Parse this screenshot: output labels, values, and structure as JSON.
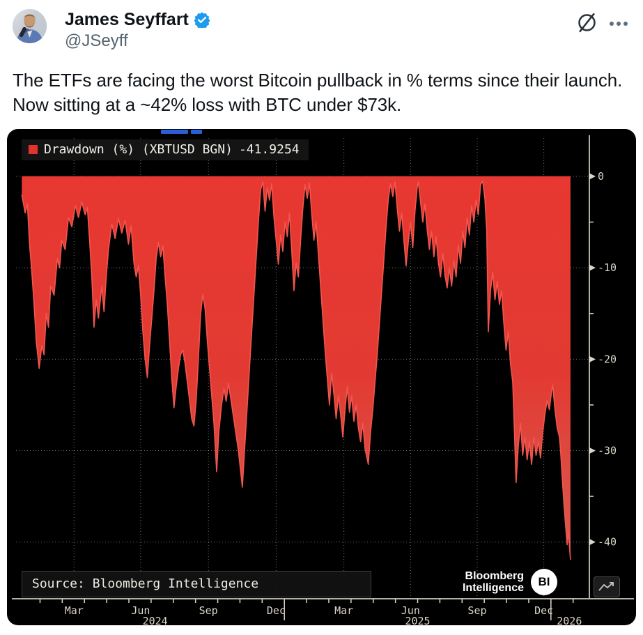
{
  "tweet": {
    "author_name": "James Seyffart",
    "author_handle": "@JSeyff",
    "verified": true,
    "body": "The ETFs are facing the worst Bitcoin pullback in % terms since their launch. Now sitting at a ~42% loss with BTC under $73k."
  },
  "header_icons": {
    "grok_icon": "slashed-circle",
    "more_icon": "ellipsis"
  },
  "colors": {
    "verified_blue": "#1d9bf0",
    "muted_gray": "#536471",
    "chart_bg": "#000000",
    "area_red_top": "#e73831",
    "area_red_bottom": "#d95c50",
    "line_red": "#f2564e",
    "axis_gray": "#b5b0a6",
    "tick_text": "#ddd6ca",
    "grid_white": "rgba(235,235,235,0.5)",
    "blue_dash": "#2b5ed6"
  },
  "chart_data": {
    "type": "area",
    "legend": {
      "label": "Drawdown (%) (XBTUSD BGN)",
      "value": "-41.9254",
      "swatch_color": "#e0332e"
    },
    "source": "Source: Bloomberg Intelligence",
    "brand": {
      "line1": "Bloomberg",
      "line2": "Intelligence",
      "badge": "BI"
    },
    "ylabel": "Drawdown (%)",
    "y_axis": {
      "side": "right",
      "unit": "%",
      "major_ticks": [
        0,
        -10,
        -20,
        -30,
        -40
      ],
      "minor_ticks": [
        -5,
        -15,
        -25,
        -35
      ],
      "domain": [
        4.5,
        -46.2
      ]
    },
    "x_axis": {
      "note_unit": "months since chart start (Jan 2024)",
      "domain_m": [
        -0.16,
        25.4
      ],
      "tick_labels": [
        {
          "label": "Mar",
          "m": 2.2
        },
        {
          "label": "Jun",
          "m": 5.2
        },
        {
          "label": "Sep",
          "m": 8.25
        },
        {
          "label": "Dec",
          "m": 11.3
        },
        {
          "label": "Mar",
          "m": 14.35
        },
        {
          "label": "Jun",
          "m": 17.35
        },
        {
          "label": "Sep",
          "m": 20.35
        },
        {
          "label": "Dec",
          "m": 23.35
        }
      ],
      "year_labels": [
        {
          "label": "2024",
          "m": 5.85
        },
        {
          "label": "2025",
          "m": 17.67
        },
        {
          "label": "2026",
          "m": 24.5
        }
      ],
      "year_separators_m": [
        11.67,
        23.67
      ],
      "month_ticks": {
        "start_m": 0.67,
        "step": 1,
        "count": 25
      }
    },
    "series": [
      {
        "name": "Drawdown (%) (XBTUSD BGN)",
        "last_value": -41.9254,
        "points": [
          [
            -0.15,
            -2
          ],
          [
            0,
            -4
          ],
          [
            0.1,
            -3
          ],
          [
            0.2,
            -7.5
          ],
          [
            0.3,
            -10.5
          ],
          [
            0.4,
            -14
          ],
          [
            0.5,
            -18
          ],
          [
            0.63,
            -21
          ],
          [
            0.75,
            -18.5
          ],
          [
            0.85,
            -19.5
          ],
          [
            0.95,
            -15
          ],
          [
            1.05,
            -16.5
          ],
          [
            1.15,
            -12
          ],
          [
            1.3,
            -13
          ],
          [
            1.45,
            -9
          ],
          [
            1.55,
            -10
          ],
          [
            1.65,
            -7
          ],
          [
            1.8,
            -8
          ],
          [
            1.95,
            -4.5
          ],
          [
            2.1,
            -5.5
          ],
          [
            2.26,
            -3.2
          ],
          [
            2.4,
            -4.5
          ],
          [
            2.55,
            -2.8
          ],
          [
            2.7,
            -4.2
          ],
          [
            2.8,
            -3.4
          ],
          [
            2.9,
            -7
          ],
          [
            3.0,
            -11
          ],
          [
            3.1,
            -16.5
          ],
          [
            3.2,
            -13.5
          ],
          [
            3.3,
            -15.5
          ],
          [
            3.45,
            -12
          ],
          [
            3.55,
            -14.8
          ],
          [
            3.65,
            -11
          ],
          [
            3.75,
            -8
          ],
          [
            3.9,
            -5.2
          ],
          [
            4.05,
            -6.8
          ],
          [
            4.2,
            -4.6
          ],
          [
            4.35,
            -6.2
          ],
          [
            4.5,
            -4.8
          ],
          [
            4.65,
            -7.4
          ],
          [
            4.77,
            -5.4
          ],
          [
            4.9,
            -9.5
          ],
          [
            5.0,
            -11
          ],
          [
            5.1,
            -9.8
          ],
          [
            5.2,
            -13
          ],
          [
            5.3,
            -17
          ],
          [
            5.4,
            -20
          ],
          [
            5.5,
            -22
          ],
          [
            5.6,
            -18.5
          ],
          [
            5.7,
            -15.5
          ],
          [
            5.8,
            -12.5
          ],
          [
            5.9,
            -9
          ],
          [
            6.0,
            -7.2
          ],
          [
            6.1,
            -8.8
          ],
          [
            6.2,
            -7.6
          ],
          [
            6.3,
            -11
          ],
          [
            6.4,
            -14
          ],
          [
            6.5,
            -18
          ],
          [
            6.6,
            -22
          ],
          [
            6.7,
            -25.3
          ],
          [
            6.8,
            -23
          ],
          [
            6.9,
            -21
          ],
          [
            7.0,
            -19.5
          ],
          [
            7.1,
            -19
          ],
          [
            7.2,
            -20.5
          ],
          [
            7.3,
            -22.5
          ],
          [
            7.4,
            -24.5
          ],
          [
            7.5,
            -26.5
          ],
          [
            7.6,
            -27.3
          ],
          [
            7.7,
            -24.5
          ],
          [
            7.8,
            -20
          ],
          [
            7.9,
            -15
          ],
          [
            8.0,
            -12.9
          ],
          [
            8.1,
            -14.5
          ],
          [
            8.2,
            -18
          ],
          [
            8.3,
            -21
          ],
          [
            8.4,
            -24
          ],
          [
            8.5,
            -27
          ],
          [
            8.62,
            -32.3
          ],
          [
            8.72,
            -28
          ],
          [
            8.84,
            -25
          ],
          [
            8.95,
            -23.2
          ],
          [
            9.05,
            -24.6
          ],
          [
            9.15,
            -22.6
          ],
          [
            9.3,
            -25
          ],
          [
            9.45,
            -27.5
          ],
          [
            9.6,
            -30
          ],
          [
            9.78,
            -34
          ],
          [
            9.9,
            -29
          ],
          [
            10.0,
            -25
          ],
          [
            10.1,
            -21
          ],
          [
            10.2,
            -17
          ],
          [
            10.3,
            -13
          ],
          [
            10.4,
            -9
          ],
          [
            10.5,
            -5
          ],
          [
            10.6,
            -1.5
          ],
          [
            10.7,
            -0.6
          ],
          [
            10.8,
            -3.8
          ],
          [
            10.9,
            -1.2
          ],
          [
            11.0,
            -2.6
          ],
          [
            11.1,
            -0.8
          ],
          [
            11.2,
            -4.4
          ],
          [
            11.3,
            -7
          ],
          [
            11.4,
            -9.6
          ],
          [
            11.5,
            -6.4
          ],
          [
            11.6,
            -8.2
          ],
          [
            11.7,
            -5
          ],
          [
            11.8,
            -6.6
          ],
          [
            11.9,
            -4
          ],
          [
            12.0,
            -8
          ],
          [
            12.1,
            -12.5
          ],
          [
            12.2,
            -9.5
          ],
          [
            12.3,
            -11
          ],
          [
            12.4,
            -7
          ],
          [
            12.5,
            -3.5
          ],
          [
            12.6,
            -0.9
          ],
          [
            12.7,
            -2.4
          ],
          [
            12.8,
            -0.7
          ],
          [
            12.9,
            -4
          ],
          [
            13.0,
            -7
          ],
          [
            13.1,
            -5
          ],
          [
            13.2,
            -8.5
          ],
          [
            13.3,
            -12
          ],
          [
            13.4,
            -15.5
          ],
          [
            13.5,
            -19
          ],
          [
            13.6,
            -22
          ],
          [
            13.7,
            -25
          ],
          [
            13.8,
            -21.5
          ],
          [
            13.9,
            -23.8
          ],
          [
            14.0,
            -26.5
          ],
          [
            14.1,
            -24
          ],
          [
            14.2,
            -26
          ],
          [
            14.3,
            -28.5
          ],
          [
            14.4,
            -25.5
          ],
          [
            14.5,
            -23
          ],
          [
            14.6,
            -25.8
          ],
          [
            14.7,
            -24
          ],
          [
            14.8,
            -26.8
          ],
          [
            14.9,
            -25
          ],
          [
            15.0,
            -27.5
          ],
          [
            15.1,
            -29
          ],
          [
            15.2,
            -27
          ],
          [
            15.3,
            -29.8
          ],
          [
            15.45,
            -31.5
          ],
          [
            15.55,
            -28
          ],
          [
            15.65,
            -25.5
          ],
          [
            15.75,
            -22.5
          ],
          [
            15.85,
            -19.5
          ],
          [
            15.95,
            -16
          ],
          [
            16.05,
            -12.5
          ],
          [
            16.15,
            -9
          ],
          [
            16.25,
            -5.5
          ],
          [
            16.35,
            -2.5
          ],
          [
            16.45,
            -0.8
          ],
          [
            16.55,
            -2.2
          ],
          [
            16.65,
            -0.6
          ],
          [
            16.75,
            -3.5
          ],
          [
            16.85,
            -6
          ],
          [
            16.95,
            -4
          ],
          [
            17.05,
            -7
          ],
          [
            17.15,
            -9.8
          ],
          [
            17.25,
            -7.2
          ],
          [
            17.35,
            -5
          ],
          [
            17.45,
            -7.8
          ],
          [
            17.55,
            -3.8
          ],
          [
            17.65,
            -1.2
          ],
          [
            17.7,
            -0.6
          ],
          [
            17.8,
            -2.8
          ],
          [
            17.9,
            -5
          ],
          [
            18.0,
            -3
          ],
          [
            18.1,
            -5.8
          ],
          [
            18.2,
            -8
          ],
          [
            18.3,
            -6
          ],
          [
            18.4,
            -8.8
          ],
          [
            18.5,
            -6.6
          ],
          [
            18.6,
            -9.4
          ],
          [
            18.7,
            -11
          ],
          [
            18.8,
            -8.4
          ],
          [
            18.9,
            -10.8
          ],
          [
            19.0,
            -12.2
          ],
          [
            19.1,
            -10
          ],
          [
            19.2,
            -12
          ],
          [
            19.3,
            -9.2
          ],
          [
            19.4,
            -11
          ],
          [
            19.5,
            -7.5
          ],
          [
            19.6,
            -9.5
          ],
          [
            19.7,
            -6
          ],
          [
            19.8,
            -7.8
          ],
          [
            19.9,
            -4.5
          ],
          [
            20.0,
            -6.4
          ],
          [
            20.1,
            -3.2
          ],
          [
            20.2,
            -5
          ],
          [
            20.3,
            -2.6
          ],
          [
            20.4,
            -4.2
          ],
          [
            20.5,
            -0.9
          ],
          [
            20.6,
            -0.5
          ],
          [
            20.7,
            -2.5
          ],
          [
            20.78,
            -6
          ],
          [
            20.85,
            -17
          ],
          [
            20.95,
            -12.5
          ],
          [
            21.05,
            -10.5
          ],
          [
            21.15,
            -13.5
          ],
          [
            21.25,
            -11.5
          ],
          [
            21.35,
            -14
          ],
          [
            21.45,
            -12.5
          ],
          [
            21.55,
            -16
          ],
          [
            21.65,
            -19
          ],
          [
            21.75,
            -17
          ],
          [
            21.85,
            -20.5
          ],
          [
            21.95,
            -22.5
          ],
          [
            22.0,
            -26
          ],
          [
            22.04,
            -29
          ],
          [
            22.1,
            -33.5
          ],
          [
            22.2,
            -29.5
          ],
          [
            22.3,
            -27
          ],
          [
            22.4,
            -30.5
          ],
          [
            22.5,
            -28.5
          ],
          [
            22.6,
            -31
          ],
          [
            22.7,
            -29
          ],
          [
            22.8,
            -31.5
          ],
          [
            22.9,
            -28.5
          ],
          [
            23.0,
            -30.5
          ],
          [
            23.1,
            -29
          ],
          [
            23.2,
            -30.8
          ],
          [
            23.3,
            -28
          ],
          [
            23.4,
            -26
          ],
          [
            23.5,
            -24.5
          ],
          [
            23.6,
            -25.5
          ],
          [
            23.7,
            -23.5
          ],
          [
            23.75,
            -22.8
          ],
          [
            23.85,
            -25.5
          ],
          [
            23.95,
            -27.5
          ],
          [
            24.05,
            -28.5
          ],
          [
            24.1,
            -29.8
          ],
          [
            24.18,
            -33
          ],
          [
            24.26,
            -36
          ],
          [
            24.34,
            -38.5
          ],
          [
            24.4,
            -40.3
          ],
          [
            24.45,
            -38.8
          ],
          [
            24.55,
            -41.93
          ]
        ]
      }
    ]
  }
}
